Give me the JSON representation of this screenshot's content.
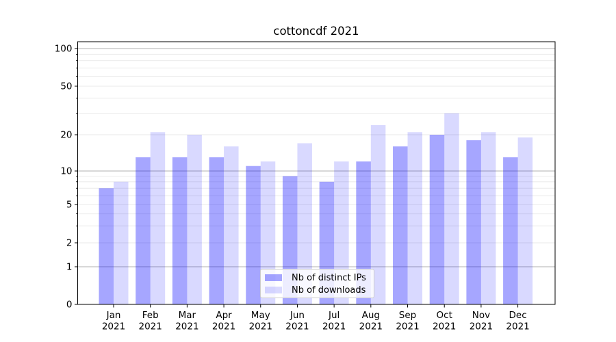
{
  "chart_data": {
    "type": "bar",
    "title": "cottoncdf 2021",
    "categories": [
      "Jan 2021",
      "Feb 2021",
      "Mar 2021",
      "Apr 2021",
      "May 2021",
      "Jun 2021",
      "Jul 2021",
      "Aug 2021",
      "Sep 2021",
      "Oct 2021",
      "Nov 2021",
      "Dec 2021"
    ],
    "month_labels": [
      "Jan",
      "Feb",
      "Mar",
      "Apr",
      "May",
      "Jun",
      "Jul",
      "Aug",
      "Sep",
      "Oct",
      "Nov",
      "Dec"
    ],
    "year_label": "2021",
    "series": [
      {
        "name": "Nb of distinct IPs",
        "color": "#0000ff",
        "opacity": 0.35,
        "blended_hex": "#a6a6ff",
        "values": [
          7,
          13,
          13,
          13,
          11,
          9,
          8,
          12,
          16,
          20,
          18,
          13
        ]
      },
      {
        "name": "Nb of downloads",
        "color": "#0000ff",
        "opacity": 0.15,
        "blended_hex": "#d9d9ff",
        "values": [
          8,
          21,
          20,
          16,
          12,
          17,
          12,
          24,
          21,
          30,
          21,
          19
        ]
      }
    ],
    "xlabel": "",
    "ylabel": "",
    "yscale": "symlog",
    "ylim": [
      0,
      110
    ],
    "y_tick_labels": [
      "0",
      "1",
      "2",
      "5",
      "10",
      "20",
      "50",
      "100"
    ],
    "y_ticks": [
      0,
      1,
      2,
      5,
      10,
      20,
      50,
      100
    ],
    "y_major_gridlines": [
      1,
      10,
      100
    ],
    "y_minor_gridlines": [
      2,
      3,
      4,
      5,
      6,
      7,
      8,
      9,
      20,
      30,
      40,
      50,
      60,
      70,
      80,
      90
    ],
    "grid": true,
    "legend_position": "lower center",
    "colors": {
      "major_grid": "#b0b0b0",
      "minor_grid": "#e8e8e8",
      "axis": "#000000",
      "text": "#000000",
      "background": "#ffffff"
    }
  }
}
